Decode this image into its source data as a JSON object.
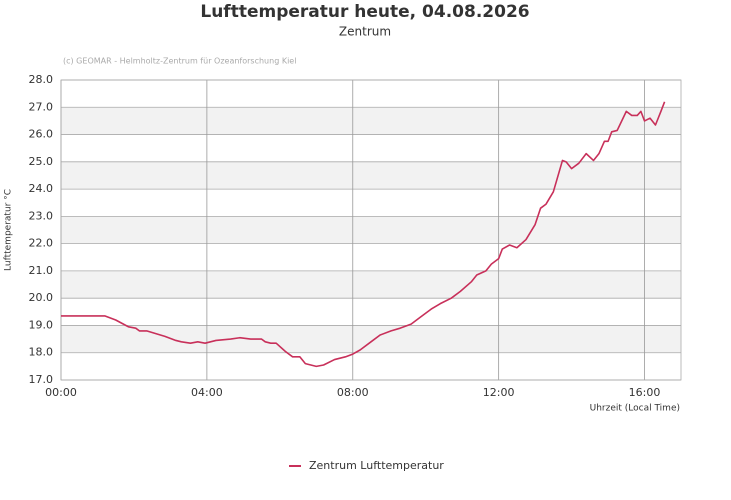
{
  "chart_data": {
    "type": "line",
    "title": "Lufttemperatur heute, 04.08.2026",
    "subtitle": "Zentrum",
    "source": "(c) GEOMAR - Helmholtz-Zentrum für Ozeanforschung Kiel",
    "x_label": "Uhrzeit (Local Time)",
    "y_label": "Lufttemperatur °C",
    "xlim": [
      0,
      17
    ],
    "xticks": [
      {
        "value": 0,
        "label": "00:00"
      },
      {
        "value": 4,
        "label": "04:00"
      },
      {
        "value": 8,
        "label": "08:00"
      },
      {
        "value": 12,
        "label": "12:00"
      },
      {
        "value": 16,
        "label": "16:00"
      }
    ],
    "ylim": [
      17,
      28
    ],
    "yticks": [
      {
        "value": 17,
        "label": "17.0"
      },
      {
        "value": 18,
        "label": "18.0"
      },
      {
        "value": 19,
        "label": "19.0"
      },
      {
        "value": 20,
        "label": "20.0"
      },
      {
        "value": 21,
        "label": "21.0"
      },
      {
        "value": 22,
        "label": "22.0"
      },
      {
        "value": 23,
        "label": "23.0"
      },
      {
        "value": 24,
        "label": "24.0"
      },
      {
        "value": 25,
        "label": "25.0"
      },
      {
        "value": 26,
        "label": "26.0"
      },
      {
        "value": 27,
        "label": "27.0"
      },
      {
        "value": 28,
        "label": "28.0"
      }
    ],
    "grid": true,
    "legend": "bottom",
    "x": [
      0,
      1.2,
      1.5,
      1.85,
      2.05,
      2.15,
      2.35,
      2.6,
      2.85,
      3.15,
      3.3,
      3.55,
      3.75,
      3.95,
      4.25,
      4.65,
      4.9,
      5.2,
      5.5,
      5.6,
      5.75,
      5.9,
      6.15,
      6.35,
      6.55,
      6.7,
      7.0,
      7.2,
      7.5,
      7.8,
      8.0,
      8.2,
      8.5,
      8.75,
      9.05,
      9.3,
      9.6,
      9.85,
      10.15,
      10.4,
      10.7,
      10.95,
      11.25,
      11.4,
      11.65,
      11.8,
      12.0,
      12.1,
      12.3,
      12.5,
      12.75,
      13.0,
      13.15,
      13.3,
      13.5,
      13.75,
      13.85,
      14.0,
      14.2,
      14.4,
      14.6,
      14.75,
      14.9,
      15.0,
      15.1,
      15.25,
      15.5,
      15.65,
      15.8,
      15.9,
      16.0,
      16.15,
      16.3,
      16.45,
      16.55
    ],
    "series": [
      {
        "name": "Zentrum Lufttemperatur",
        "color": "#c8305a",
        "values": [
          19.35,
          19.35,
          19.2,
          18.95,
          18.9,
          18.8,
          18.8,
          18.7,
          18.6,
          18.45,
          18.4,
          18.35,
          18.4,
          18.35,
          18.45,
          18.5,
          18.55,
          18.5,
          18.5,
          18.4,
          18.35,
          18.35,
          18.05,
          17.85,
          17.85,
          17.6,
          17.5,
          17.55,
          17.75,
          17.85,
          17.95,
          18.1,
          18.4,
          18.65,
          18.8,
          18.9,
          19.05,
          19.3,
          19.6,
          19.8,
          20.0,
          20.25,
          20.6,
          20.85,
          21.0,
          21.25,
          21.45,
          21.8,
          21.95,
          21.85,
          22.15,
          22.7,
          23.3,
          23.45,
          23.9,
          25.05,
          25.0,
          24.75,
          24.95,
          25.3,
          25.05,
          25.3,
          25.75,
          25.75,
          26.1,
          26.15,
          26.85,
          26.7,
          26.7,
          26.85,
          26.5,
          26.6,
          26.35,
          26.85,
          27.2
        ]
      }
    ]
  }
}
